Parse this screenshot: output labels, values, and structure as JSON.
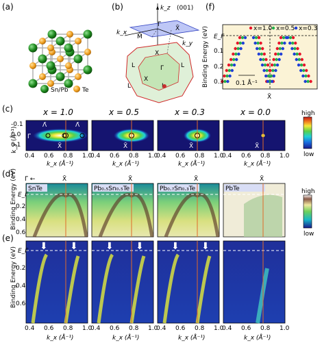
{
  "panel_labels": [
    "(a)",
    "(b)",
    "(c)",
    "(d)",
    "(e)",
    "(f)"
  ],
  "panel_a": {
    "legend": [
      {
        "label": "Sn/Pb",
        "color": "#2e8b2e"
      },
      {
        "label": "Te",
        "color": "#f0a020"
      }
    ]
  },
  "panel_b": {
    "surface": "(001)",
    "axes": {
      "kz": "k_z",
      "kx": "k_x",
      "ky": "k_y"
    },
    "points": [
      "Γ̄",
      "M̄",
      "X̄",
      "X",
      "Γ",
      "L",
      "L",
      "X",
      "L",
      "L"
    ]
  },
  "panel_c": {
    "titles": [
      "x = 1.0",
      "x = 0.5",
      "x = 0.3",
      "x = 0.0"
    ],
    "ylabel": "k_y (Å⁻¹)",
    "xlabel": "k_x (Å⁻¹)",
    "yticks": [
      "-0.1",
      "0.0",
      "0.1"
    ],
    "xticks": [
      "0.4",
      "0.6",
      "0.8",
      "1.0"
    ],
    "point_labels": [
      "Λ̄",
      "Λ̄",
      "Γ̄",
      "X̄",
      "X̄",
      "X̄",
      "X̄"
    ],
    "colorbar": {
      "high": "high",
      "low": "low"
    }
  },
  "panel_d": {
    "titles": [
      "SnTe",
      "Pb₀.₅Sn₀.₅Te",
      "Pb₀.₇Sn₀.₃Te",
      "PbTe"
    ],
    "top_labels": [
      "Γ̄ ←",
      "X̄",
      "X̄",
      "X̄",
      "X̄"
    ],
    "ylabel": "Binding Energy (eV)",
    "ef": "E_F",
    "yticks": [
      "0.2",
      "0.4",
      "0.6"
    ],
    "colorbar": {
      "high": "high",
      "low": "low"
    }
  },
  "panel_e": {
    "ylabel": "Binding Energy (eV)",
    "ef": "E_F",
    "yticks": [
      "0.2",
      "0.4",
      "0.6"
    ],
    "xticks": [
      "0.4",
      "0.6",
      "0.8",
      "1.0"
    ],
    "xlabel": "k_x (Å⁻¹)"
  },
  "panel_f": {
    "ylabel": "Binding Energy (eV)",
    "ef": "E_F",
    "yticks": [
      "0.1",
      "0.2",
      "0.3"
    ],
    "legend": [
      {
        "label": "x=1.0",
        "color": "#e8142a"
      },
      {
        "label": "x=0.5",
        "color": "#22b14c"
      },
      {
        "label": "x=0.3",
        "color": "#1f3fd6"
      }
    ],
    "scalebar": "0.1 Å⁻¹",
    "xlabel": "X̄"
  },
  "colors": {
    "cut_line": "#e06a2a",
    "ef_dash": "#ffffff",
    "panel_f_bg": "#fbf3d6"
  }
}
